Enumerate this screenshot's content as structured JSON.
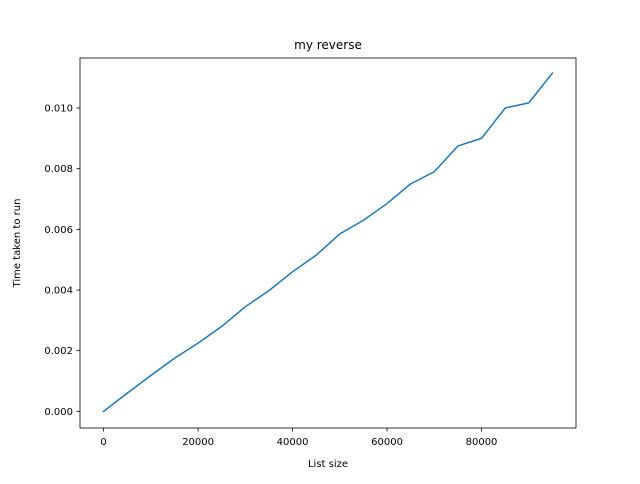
{
  "chart_data": {
    "type": "line",
    "title": "my reverse",
    "xlabel": "List size",
    "ylabel": "Time taken to run",
    "xlim": [
      -5000,
      100000
    ],
    "ylim": [
      -0.00055,
      0.01165
    ],
    "xticks": [
      0,
      20000,
      40000,
      60000,
      80000
    ],
    "xtick_labels": [
      "0",
      "20000",
      "40000",
      "60000",
      "80000"
    ],
    "yticks": [
      0.0,
      0.002,
      0.004,
      0.006,
      0.008,
      0.01
    ],
    "ytick_labels": [
      "0.000",
      "0.002",
      "0.004",
      "0.006",
      "0.008",
      "0.010"
    ],
    "grid": false,
    "series": [
      {
        "name": "my reverse",
        "color": "#1f77b4",
        "x": [
          0,
          5000,
          10000,
          15000,
          20000,
          25000,
          30000,
          35000,
          40000,
          45000,
          50000,
          55000,
          60000,
          65000,
          70000,
          75000,
          80000,
          85000,
          90000,
          95000
        ],
        "values": [
          0.0,
          0.0006,
          0.00118,
          0.00175,
          0.00225,
          0.0028,
          0.00345,
          0.00398,
          0.0046,
          0.00515,
          0.00585,
          0.0063,
          0.00685,
          0.0075,
          0.0079,
          0.00875,
          0.009,
          0.01,
          0.01017,
          0.01115
        ]
      }
    ]
  }
}
